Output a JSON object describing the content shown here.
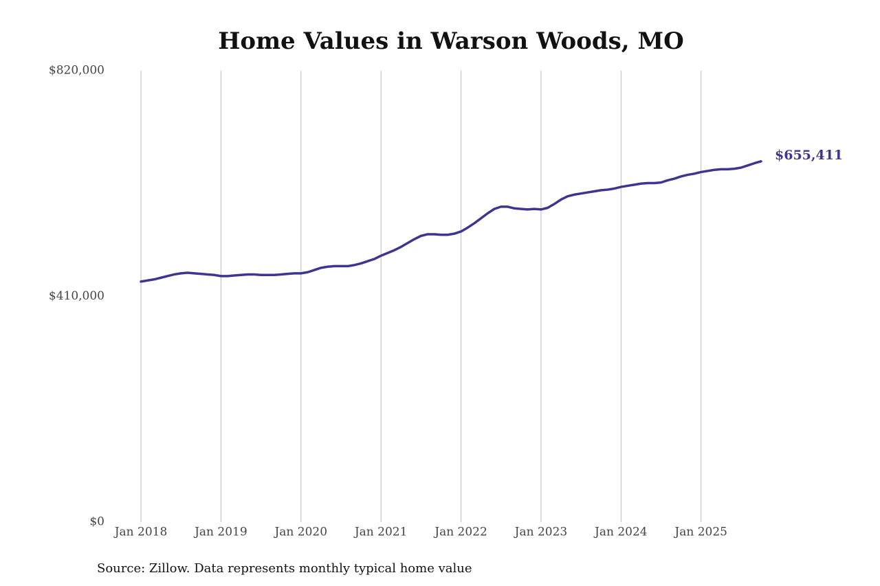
{
  "chart_data": {
    "type": "line",
    "title": "Home Values in Warson Woods, MO",
    "note": "Source: Zillow. Data represents monthly typical home value",
    "x": [
      "2018-01",
      "2018-02",
      "2018-03",
      "2018-04",
      "2018-05",
      "2018-06",
      "2018-07",
      "2018-08",
      "2018-09",
      "2018-10",
      "2018-11",
      "2018-12",
      "2019-01",
      "2019-02",
      "2019-03",
      "2019-04",
      "2019-05",
      "2019-06",
      "2019-07",
      "2019-08",
      "2019-09",
      "2019-10",
      "2019-11",
      "2019-12",
      "2020-01",
      "2020-02",
      "2020-03",
      "2020-04",
      "2020-05",
      "2020-06",
      "2020-07",
      "2020-08",
      "2020-09",
      "2020-10",
      "2020-11",
      "2020-12",
      "2021-01",
      "2021-02",
      "2021-03",
      "2021-04",
      "2021-05",
      "2021-06",
      "2021-07",
      "2021-08",
      "2021-09",
      "2021-10",
      "2021-11",
      "2021-12",
      "2022-01",
      "2022-02",
      "2022-03",
      "2022-04",
      "2022-05",
      "2022-06",
      "2022-07",
      "2022-08",
      "2022-09",
      "2022-10",
      "2022-11",
      "2022-12",
      "2023-01",
      "2023-02",
      "2023-03",
      "2023-04",
      "2023-05",
      "2023-06",
      "2023-07",
      "2023-08",
      "2023-09",
      "2023-10",
      "2023-11",
      "2023-12",
      "2024-01",
      "2024-02",
      "2024-03",
      "2024-04",
      "2024-05",
      "2024-06",
      "2024-07",
      "2024-08",
      "2024-09",
      "2024-10",
      "2024-11",
      "2024-12",
      "2025-01",
      "2025-02",
      "2025-03",
      "2025-04",
      "2025-05",
      "2025-06",
      "2025-07",
      "2025-08",
      "2025-09",
      "2025-10"
    ],
    "series": [
      {
        "name": "Typical home value",
        "color": "#3d3590",
        "values": [
          437000,
          439000,
          441000,
          444000,
          447000,
          450000,
          452000,
          453000,
          452000,
          451000,
          450000,
          449000,
          447000,
          447000,
          448000,
          449000,
          450000,
          450000,
          449000,
          449000,
          449000,
          450000,
          451000,
          452000,
          452000,
          454000,
          458000,
          462000,
          464000,
          465000,
          465000,
          465000,
          467000,
          470000,
          474000,
          478000,
          484000,
          489000,
          494000,
          500000,
          507000,
          514000,
          520000,
          523000,
          523000,
          522000,
          522000,
          524000,
          528000,
          535000,
          543000,
          552000,
          561000,
          569000,
          573000,
          573000,
          570000,
          569000,
          568000,
          569000,
          568000,
          571000,
          578000,
          586000,
          592000,
          595000,
          597000,
          599000,
          601000,
          603000,
          604000,
          606000,
          609000,
          611000,
          613000,
          615000,
          616000,
          616000,
          617000,
          621000,
          624000,
          628000,
          631000,
          633000,
          636000,
          638000,
          640000,
          641000,
          641000,
          642000,
          644000,
          648000,
          652000,
          655411
        ],
        "value_labels": [
          null,
          null,
          null,
          null,
          null,
          null,
          null,
          null,
          null,
          null,
          null,
          null,
          null,
          null,
          null,
          null,
          null,
          null,
          null,
          null,
          null,
          null,
          null,
          null,
          null,
          null,
          null,
          null,
          null,
          null,
          null,
          null,
          null,
          null,
          null,
          null,
          null,
          null,
          null,
          null,
          null,
          null,
          null,
          null,
          null,
          null,
          null,
          null,
          null,
          null,
          null,
          null,
          null,
          null,
          null,
          null,
          null,
          null,
          null,
          null,
          null,
          null,
          null,
          null,
          null,
          null,
          null,
          null,
          null,
          null,
          null,
          null,
          null,
          null,
          null,
          null,
          null,
          null,
          null,
          null,
          null,
          null,
          null,
          null,
          null,
          null,
          null,
          null,
          null,
          null,
          null,
          null,
          null,
          "$655,411"
        ]
      }
    ],
    "xlim": [
      "2018-01",
      "2025-10"
    ],
    "xticks": [
      {
        "value": "2018-01",
        "label": "Jan 2018"
      },
      {
        "value": "2019-01",
        "label": "Jan 2019"
      },
      {
        "value": "2020-01",
        "label": "Jan 2020"
      },
      {
        "value": "2021-01",
        "label": "Jan 2021"
      },
      {
        "value": "2022-01",
        "label": "Jan 2022"
      },
      {
        "value": "2023-01",
        "label": "Jan 2023"
      },
      {
        "value": "2024-01",
        "label": "Jan 2024"
      },
      {
        "value": "2025-01",
        "label": "Jan 2025"
      }
    ],
    "ylim": [
      0,
      820000
    ],
    "yticks": [
      {
        "value": 0,
        "label": "$0"
      },
      {
        "value": 410000,
        "label": "$410,000"
      },
      {
        "value": 820000,
        "label": "$820,000"
      }
    ],
    "grid": "x"
  }
}
